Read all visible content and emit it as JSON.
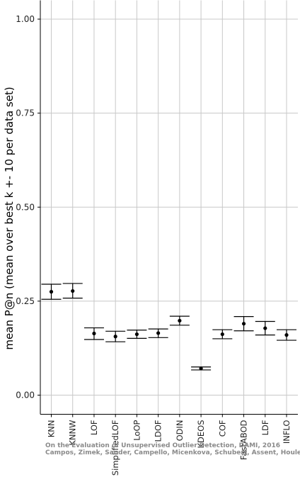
{
  "chart_data": {
    "type": "errorbar",
    "title": "",
    "xlabel": "",
    "ylabel": "mean P@n (mean over best k +- 10 per data set)",
    "ylim": [
      0.0,
      1.05
    ],
    "yticks": [
      0.0,
      0.25,
      0.5,
      0.75,
      1.0
    ],
    "ytick_labels": [
      "0.00",
      "0.25",
      "0.50",
      "0.75",
      "1.00"
    ],
    "grid": true,
    "categories": [
      "KNN",
      "KNNW",
      "LOF",
      "SimplifiedLOF",
      "LoOP",
      "LDOF",
      "ODIN",
      "KDEOS",
      "COF",
      "FastABOD",
      "LDF",
      "INFLO"
    ],
    "series": [
      {
        "mean": [
          0.275,
          0.277,
          0.164,
          0.156,
          0.162,
          0.165,
          0.198,
          0.071,
          0.162,
          0.19,
          0.178,
          0.16
        ],
        "lower": [
          0.255,
          0.258,
          0.148,
          0.142,
          0.151,
          0.153,
          0.186,
          0.067,
          0.15,
          0.171,
          0.16,
          0.146
        ],
        "upper": [
          0.295,
          0.297,
          0.179,
          0.17,
          0.173,
          0.176,
          0.21,
          0.075,
          0.174,
          0.209,
          0.196,
          0.174
        ]
      }
    ],
    "watermark": [
      "On the Evaluation of Unsupervised Outlier Detection, DAMI, 2016",
      "Campos, Zimek, Sander, Campello, Micenkova, Schubert, Assent, Houle"
    ]
  }
}
